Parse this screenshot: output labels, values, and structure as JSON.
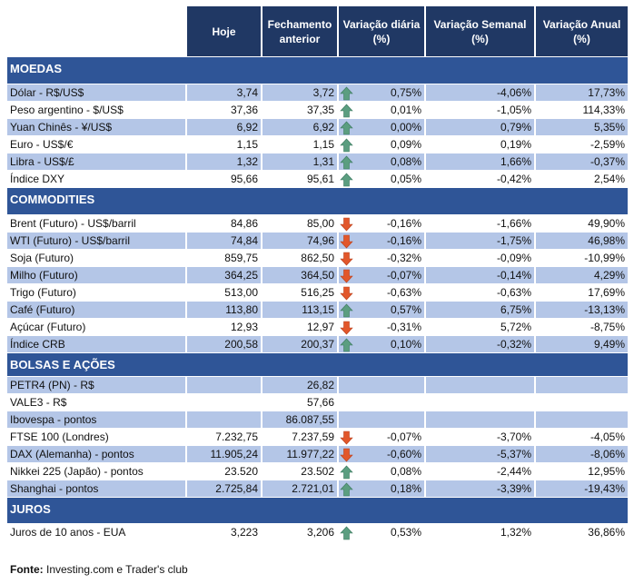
{
  "headers": [
    "",
    "Hoje",
    "Fechamento anterior",
    "Variação diária (%)",
    "Variação Semanal (%)",
    "Variação Anual (%)"
  ],
  "colors": {
    "header": "#203864",
    "section": "#2f5597",
    "alt_row": "#b4c6e7",
    "up_arrow": "#5b9e80",
    "down_arrow": "#e2572b"
  },
  "sections": [
    {
      "title": "MOEDAS",
      "rows": [
        {
          "label": "Dólar - R$/US$",
          "hoje": "3,74",
          "anterior": "3,72",
          "trend": "up",
          "diaria": "0,75%",
          "semanal": "-4,06%",
          "anual": "17,73%"
        },
        {
          "label": "Peso argentino - $/US$",
          "hoje": "37,36",
          "anterior": "37,35",
          "trend": "up",
          "diaria": "0,01%",
          "semanal": "-1,05%",
          "anual": "114,33%"
        },
        {
          "label": "Yuan Chinês - ¥/US$",
          "hoje": "6,92",
          "anterior": "6,92",
          "trend": "up",
          "diaria": "0,00%",
          "semanal": "0,79%",
          "anual": "5,35%"
        },
        {
          "label": "Euro - US$/€",
          "hoje": "1,15",
          "anterior": "1,15",
          "trend": "up",
          "diaria": "0,09%",
          "semanal": "0,19%",
          "anual": "-2,59%"
        },
        {
          "label": "Libra - US$/£",
          "hoje": "1,32",
          "anterior": "1,31",
          "trend": "up",
          "diaria": "0,08%",
          "semanal": "1,66%",
          "anual": "-0,37%"
        },
        {
          "label": "Índice DXY",
          "hoje": "95,66",
          "anterior": "95,61",
          "trend": "up",
          "diaria": "0,05%",
          "semanal": "-0,42%",
          "anual": "2,54%"
        }
      ]
    },
    {
      "title": "COMMODITIES",
      "rows": [
        {
          "label": "Brent (Futuro) - US$/barril",
          "hoje": "84,86",
          "anterior": "85,00",
          "trend": "down",
          "diaria": "-0,16%",
          "semanal": "-1,66%",
          "anual": "49,90%"
        },
        {
          "label": "WTI (Futuro) - US$/barril",
          "hoje": "74,84",
          "anterior": "74,96",
          "trend": "down",
          "diaria": "-0,16%",
          "semanal": "-1,75%",
          "anual": "46,98%"
        },
        {
          "label": "Soja (Futuro)",
          "hoje": "859,75",
          "anterior": "862,50",
          "trend": "down",
          "diaria": "-0,32%",
          "semanal": "-0,09%",
          "anual": "-10,99%"
        },
        {
          "label": "Milho (Futuro)",
          "hoje": "364,25",
          "anterior": "364,50",
          "trend": "down",
          "diaria": "-0,07%",
          "semanal": "-0,14%",
          "anual": "4,29%"
        },
        {
          "label": "Trigo (Futuro)",
          "hoje": "513,00",
          "anterior": "516,25",
          "trend": "down",
          "diaria": "-0,63%",
          "semanal": "-0,63%",
          "anual": "17,69%"
        },
        {
          "label": "Café (Futuro)",
          "hoje": "113,80",
          "anterior": "113,15",
          "trend": "up",
          "diaria": "0,57%",
          "semanal": "6,75%",
          "anual": "-13,13%"
        },
        {
          "label": "Açúcar (Futuro)",
          "hoje": "12,93",
          "anterior": "12,97",
          "trend": "down",
          "diaria": "-0,31%",
          "semanal": "5,72%",
          "anual": "-8,75%"
        },
        {
          "label": "Índice CRB",
          "hoje": "200,58",
          "anterior": "200,37",
          "trend": "up",
          "diaria": "0,10%",
          "semanal": "-0,32%",
          "anual": "9,49%"
        }
      ]
    },
    {
      "title": "BOLSAS E AÇÕES",
      "rows": [
        {
          "label": "PETR4 (PN) - R$",
          "hoje": "",
          "anterior": "26,82",
          "trend": "",
          "diaria": "",
          "semanal": "",
          "anual": ""
        },
        {
          "label": "VALE3 - R$",
          "hoje": "",
          "anterior": "57,66",
          "trend": "",
          "diaria": "",
          "semanal": "",
          "anual": ""
        },
        {
          "label": "Ibovespa - pontos",
          "hoje": "",
          "anterior": "86.087,55",
          "trend": "",
          "diaria": "",
          "semanal": "",
          "anual": ""
        },
        {
          "label": "FTSE 100 (Londres)",
          "hoje": "7.232,75",
          "anterior": "7.237,59",
          "trend": "down",
          "diaria": "-0,07%",
          "semanal": "-3,70%",
          "anual": "-4,05%"
        },
        {
          "label": "DAX (Alemanha) - pontos",
          "hoje": "11.905,24",
          "anterior": "11.977,22",
          "trend": "down",
          "diaria": "-0,60%",
          "semanal": "-5,37%",
          "anual": "-8,06%"
        },
        {
          "label": "Nikkei 225 (Japão) - pontos",
          "hoje": "23.520",
          "anterior": "23.502",
          "trend": "up",
          "diaria": "0,08%",
          "semanal": "-2,44%",
          "anual": "12,95%"
        },
        {
          "label": "Shanghai - pontos",
          "hoje": "2.725,84",
          "anterior": "2.721,01",
          "trend": "up",
          "diaria": "0,18%",
          "semanal": "-3,39%",
          "anual": "-19,43%"
        }
      ]
    },
    {
      "title": "JUROS",
      "rows": [
        {
          "label": "Juros de 10 anos - EUA",
          "hoje": "3,223",
          "anterior": "3,206",
          "trend": "up",
          "diaria": "0,53%",
          "semanal": "1,32%",
          "anual": "36,86%"
        }
      ]
    }
  ],
  "footer": {
    "source_label": "Fonte:",
    "source_text": " Investing.com e Trader's club"
  }
}
